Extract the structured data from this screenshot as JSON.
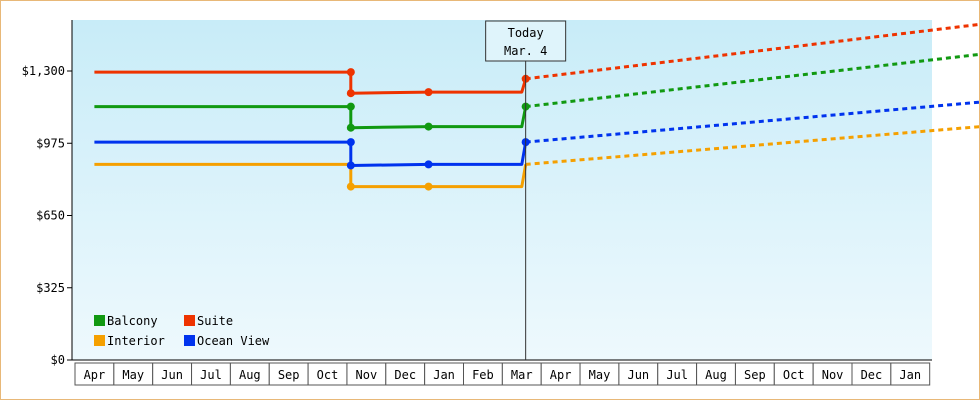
{
  "chart_data": {
    "type": "line",
    "x_categories": [
      "Apr",
      "May",
      "Jun",
      "Jul",
      "Aug",
      "Sep",
      "Oct",
      "Nov",
      "Dec",
      "Jan",
      "Feb",
      "Mar",
      "Apr",
      "May",
      "Jun",
      "Jul",
      "Aug",
      "Sep",
      "Oct",
      "Nov",
      "Dec",
      "Jan"
    ],
    "y_ticks": [
      "$0",
      "$325",
      "$650",
      "$975",
      "$1,300"
    ],
    "ylim": [
      0,
      1300
    ],
    "grid": false,
    "legend_placement": "bottom-left",
    "today_marker": {
      "line1": "Today",
      "line2": "Mar. 4",
      "x_index": 11.1
    },
    "series": [
      {
        "name": "Balcony",
        "color": "#119911",
        "history": [
          [
            0,
            1140
          ],
          [
            6.6,
            1140
          ],
          [
            6.6,
            1045
          ],
          [
            8.6,
            1050
          ],
          [
            11.0,
            1050
          ],
          [
            11.1,
            1140
          ]
        ],
        "markers": [
          [
            6.6,
            1140
          ],
          [
            6.6,
            1045
          ],
          [
            8.6,
            1050
          ],
          [
            11.1,
            1140
          ]
        ],
        "forecast": [
          [
            11.1,
            1140
          ],
          [
            22.8,
            1375
          ]
        ]
      },
      {
        "name": "Suite",
        "color": "#ee3300",
        "history": [
          [
            0,
            1295
          ],
          [
            6.6,
            1295
          ],
          [
            6.6,
            1200
          ],
          [
            8.6,
            1205
          ],
          [
            11.0,
            1205
          ],
          [
            11.1,
            1265
          ]
        ],
        "markers": [
          [
            6.6,
            1295
          ],
          [
            6.6,
            1200
          ],
          [
            8.6,
            1205
          ],
          [
            11.1,
            1265
          ]
        ],
        "forecast": [
          [
            11.1,
            1265
          ],
          [
            22.8,
            1510
          ]
        ]
      },
      {
        "name": "Interior",
        "color": "#f5a000",
        "history": [
          [
            0,
            880
          ],
          [
            6.6,
            880
          ],
          [
            6.6,
            780
          ],
          [
            8.6,
            780
          ],
          [
            11.0,
            780
          ],
          [
            11.1,
            880
          ]
        ],
        "markers": [
          [
            6.6,
            780
          ],
          [
            8.6,
            780
          ]
        ],
        "forecast": [
          [
            11.1,
            880
          ],
          [
            22.8,
            1050
          ]
        ]
      },
      {
        "name": "Ocean View",
        "color": "#0033ee",
        "history": [
          [
            0,
            980
          ],
          [
            6.6,
            980
          ],
          [
            6.6,
            875
          ],
          [
            8.6,
            880
          ],
          [
            11.0,
            880
          ],
          [
            11.1,
            980
          ]
        ],
        "markers": [
          [
            6.6,
            980
          ],
          [
            6.6,
            875
          ],
          [
            8.6,
            880
          ],
          [
            11.1,
            980
          ]
        ],
        "forecast": [
          [
            11.1,
            980
          ],
          [
            22.8,
            1160
          ]
        ]
      }
    ],
    "legend": [
      {
        "label": "Balcony",
        "color": "#119911"
      },
      {
        "label": "Suite",
        "color": "#ee3300"
      },
      {
        "label": "Interior",
        "color": "#f5a000"
      },
      {
        "label": "Ocean View",
        "color": "#0033ee"
      }
    ]
  }
}
